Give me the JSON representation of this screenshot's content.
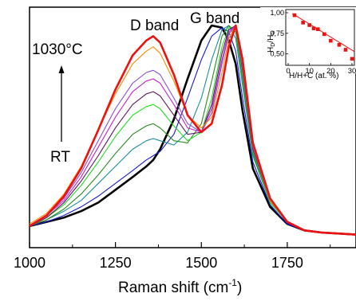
{
  "chart_data": [
    {
      "type": "line",
      "title": "",
      "xlabel": "Raman shift (cm",
      "xlabel_sup": "-1",
      "xlabel_close": ")",
      "ylabel": "",
      "xlim": [
        1000,
        1950
      ],
      "ylim": [
        0,
        1.05
      ],
      "x_ticks": [
        1000,
        1250,
        1500,
        1750
      ],
      "x_tick_labels": [
        "1000",
        "1250",
        "1500",
        "1750"
      ],
      "grid": false,
      "annotations": {
        "d_band": "D band",
        "g_band": "G band",
        "top_temp": "1030°C",
        "bottom_temp": "RT"
      },
      "x": [
        1000,
        1050,
        1100,
        1150,
        1200,
        1250,
        1300,
        1340,
        1360,
        1380,
        1420,
        1460,
        1500,
        1530,
        1560,
        1580,
        1600,
        1620,
        1650,
        1700,
        1750,
        1800,
        1850,
        1950
      ],
      "series": [
        {
          "color": "#000000",
          "values": [
            0.06,
            0.08,
            0.1,
            0.13,
            0.17,
            0.23,
            0.29,
            0.34,
            0.37,
            0.42,
            0.56,
            0.75,
            0.93,
            1.0,
            0.99,
            0.93,
            0.82,
            0.6,
            0.33,
            0.15,
            0.07,
            0.04,
            0.03,
            0.02
          ]
        },
        {
          "color": "#1a1ad4",
          "values": [
            0.06,
            0.08,
            0.11,
            0.15,
            0.2,
            0.26,
            0.32,
            0.37,
            0.39,
            0.41,
            0.49,
            0.66,
            0.84,
            0.95,
            0.99,
            0.97,
            0.88,
            0.66,
            0.36,
            0.16,
            0.07,
            0.04,
            0.03,
            0.02
          ]
        },
        {
          "color": "#1b8fa0",
          "values": [
            0.06,
            0.09,
            0.13,
            0.18,
            0.26,
            0.34,
            0.42,
            0.46,
            0.47,
            0.46,
            0.44,
            0.5,
            0.66,
            0.84,
            0.98,
            1.0,
            0.94,
            0.72,
            0.39,
            0.17,
            0.08,
            0.04,
            0.03,
            0.02
          ]
        },
        {
          "color": "#2a8a20",
          "values": [
            0.06,
            0.09,
            0.14,
            0.21,
            0.3,
            0.4,
            0.49,
            0.53,
            0.54,
            0.52,
            0.46,
            0.45,
            0.54,
            0.74,
            0.95,
            1.0,
            0.97,
            0.75,
            0.4,
            0.17,
            0.08,
            0.04,
            0.03,
            0.02
          ]
        },
        {
          "color": "#22dd22",
          "values": [
            0.06,
            0.1,
            0.16,
            0.25,
            0.36,
            0.48,
            0.58,
            0.62,
            0.63,
            0.61,
            0.53,
            0.46,
            0.5,
            0.66,
            0.9,
            0.99,
            0.99,
            0.77,
            0.41,
            0.17,
            0.08,
            0.04,
            0.03,
            0.02
          ]
        },
        {
          "color": "#5a1a5a",
          "values": [
            0.06,
            0.1,
            0.17,
            0.27,
            0.39,
            0.52,
            0.63,
            0.68,
            0.69,
            0.67,
            0.58,
            0.49,
            0.5,
            0.63,
            0.87,
            0.98,
            1.0,
            0.79,
            0.42,
            0.18,
            0.08,
            0.04,
            0.03,
            0.02
          ]
        },
        {
          "color": "#cc22cc",
          "values": [
            0.06,
            0.11,
            0.18,
            0.29,
            0.43,
            0.57,
            0.69,
            0.74,
            0.75,
            0.73,
            0.63,
            0.52,
            0.5,
            0.61,
            0.84,
            0.97,
            1.0,
            0.8,
            0.43,
            0.18,
            0.08,
            0.04,
            0.03,
            0.02
          ]
        },
        {
          "color": "#8a4fd0",
          "values": [
            0.06,
            0.11,
            0.19,
            0.31,
            0.46,
            0.61,
            0.73,
            0.78,
            0.79,
            0.77,
            0.66,
            0.54,
            0.5,
            0.59,
            0.82,
            0.96,
            1.0,
            0.81,
            0.43,
            0.18,
            0.08,
            0.04,
            0.03,
            0.02
          ]
        },
        {
          "color": "#ff8c00",
          "values": [
            0.07,
            0.12,
            0.21,
            0.34,
            0.51,
            0.68,
            0.82,
            0.88,
            0.9,
            0.87,
            0.74,
            0.58,
            0.52,
            0.57,
            0.78,
            0.94,
            1.0,
            0.82,
            0.44,
            0.18,
            0.08,
            0.04,
            0.03,
            0.02
          ]
        },
        {
          "color": "#ee1111",
          "values": [
            0.06,
            0.11,
            0.2,
            0.33,
            0.51,
            0.7,
            0.86,
            0.93,
            0.95,
            0.92,
            0.77,
            0.58,
            0.5,
            0.54,
            0.72,
            0.9,
            1.0,
            0.84,
            0.45,
            0.19,
            0.08,
            0.04,
            0.03,
            0.02
          ]
        }
      ]
    },
    {
      "type": "scatter",
      "title": "",
      "xlabel": "H/H+C (at. %)",
      "ylabel_main": "H",
      "ylabel_sub1": "D",
      "ylabel_slash": "/H",
      "ylabel_sub2": "G",
      "xlim": [
        0,
        30
      ],
      "ylim": [
        0.4,
        1.0
      ],
      "x_ticks": [
        0,
        10,
        20,
        30
      ],
      "x_tick_labels": [
        "0",
        "10",
        "20",
        "30"
      ],
      "y_ticks": [
        0.5,
        0.75,
        1.0
      ],
      "y_tick_labels": [
        "0,50",
        "0,75",
        "1,00"
      ],
      "marker_color": "#ee1111",
      "points": [
        {
          "x": 3,
          "y": 0.97
        },
        {
          "x": 7,
          "y": 0.88
        },
        {
          "x": 10,
          "y": 0.85
        },
        {
          "x": 12,
          "y": 0.81
        },
        {
          "x": 14,
          "y": 0.8
        },
        {
          "x": 17,
          "y": 0.74
        },
        {
          "x": 20,
          "y": 0.66
        },
        {
          "x": 24,
          "y": 0.61
        },
        {
          "x": 27,
          "y": 0.55
        },
        {
          "x": 30,
          "y": 0.44
        }
      ],
      "fit_line": [
        {
          "x": 2,
          "y": 0.99
        },
        {
          "x": 31,
          "y": 0.53
        }
      ]
    }
  ]
}
